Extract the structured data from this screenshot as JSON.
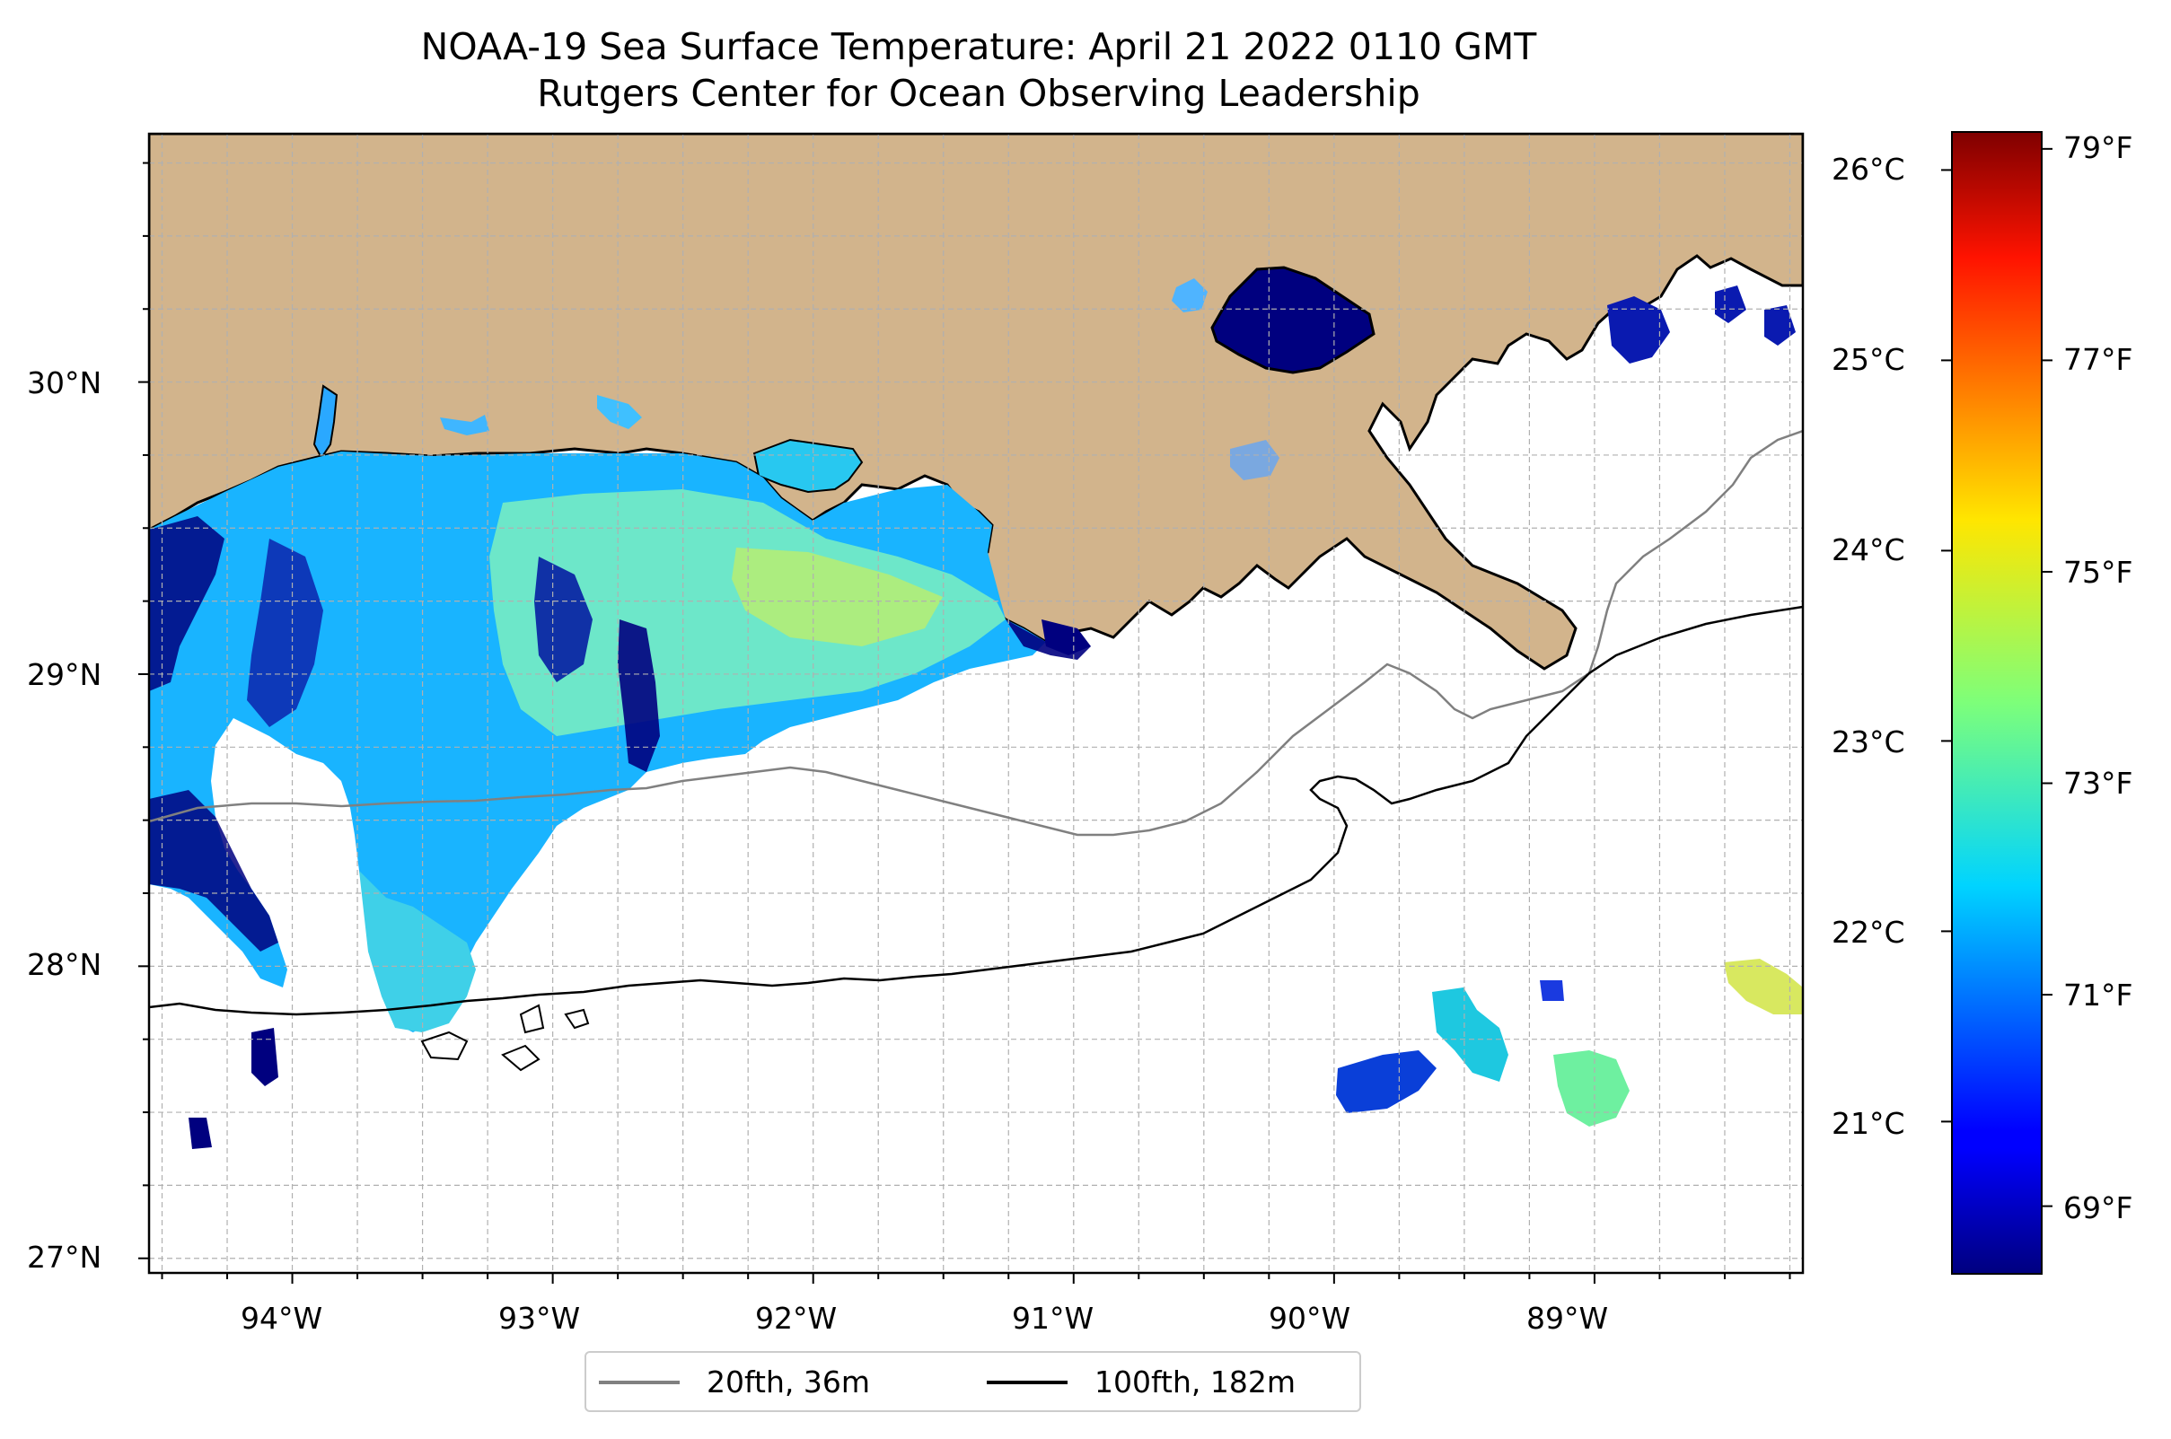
{
  "title": {
    "line1": "NOAA-19 Sea Surface Temperature: April 21 2022 0110 GMT",
    "line2": "Rutgers Center for Ocean Observing Leadership"
  },
  "map": {
    "lon_range": [
      -94.55,
      -88.2
    ],
    "lat_range": [
      26.95,
      30.85
    ],
    "lat_ticks": [
      "27°N",
      "28°N",
      "29°N",
      "30°N"
    ],
    "lon_ticks": [
      "94°W",
      "93°W",
      "92°W",
      "91°W",
      "90°W",
      "89°W"
    ],
    "gridlines": true,
    "land_color": "#d2b48c",
    "ocean_color": "#ffffff"
  },
  "colorbar": {
    "colormap": "jet",
    "celsius_ticks": [
      "21°C",
      "22°C",
      "23°C",
      "24°C",
      "25°C",
      "26°C"
    ],
    "fahrenheit_ticks": [
      "69°F",
      "71°F",
      "73°F",
      "75°F",
      "77°F",
      "79°F"
    ],
    "range_celsius": [
      20.2,
      26.2
    ]
  },
  "legend": {
    "placement": "bottom-center",
    "items": [
      {
        "label": "20fth, 36m",
        "color": "#808080"
      },
      {
        "label": "100fth, 182m",
        "color": "#000000"
      }
    ]
  }
}
